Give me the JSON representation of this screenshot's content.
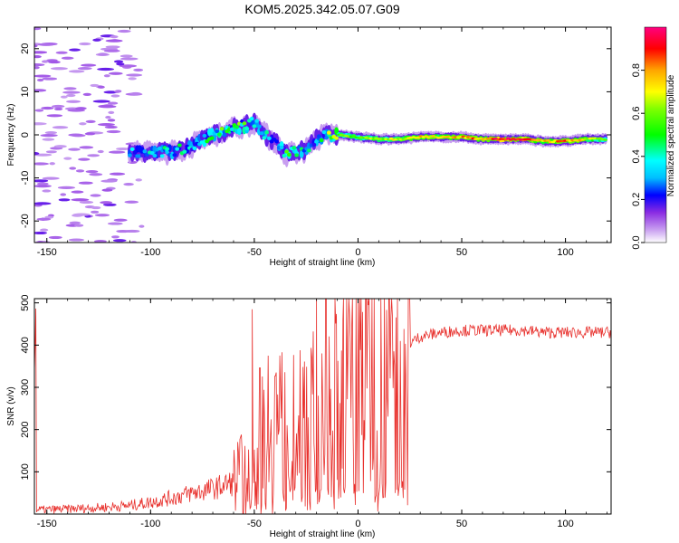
{
  "figure": {
    "title": "KOM5.2025.342.05.07.G09"
  },
  "chart_data": [
    {
      "type": "heatmap",
      "id": "spectrogram",
      "xlabel": "Height of straight line (km)",
      "ylabel": "Frequency (Hz)",
      "xlim": [
        -156,
        122
      ],
      "ylim": [
        -25,
        25
      ],
      "xticks": [
        -150,
        -100,
        -50,
        0,
        50,
        100
      ],
      "xtick_labels": [
        "-150",
        "-100",
        "-50",
        "0",
        "50",
        "100"
      ],
      "yticks": [
        -20,
        -10,
        0,
        10,
        20
      ],
      "ytick_labels": [
        "-20",
        "-10",
        "0",
        "10",
        "20"
      ],
      "colorbar": {
        "label": "Normalized spectral amplitude",
        "range": [
          0,
          1
        ],
        "ticks": [
          0.0,
          0.2,
          0.4,
          0.6,
          0.8
        ],
        "tick_labels": [
          "0.0",
          "0.2",
          "0.4",
          "0.6",
          "0.8"
        ]
      },
      "ridge": {
        "x": [
          -110,
          -100,
          -90,
          -80,
          -70,
          -60,
          -55,
          -50,
          -45,
          -40,
          -35,
          -30,
          -25,
          -20,
          -15,
          -10,
          0,
          10,
          20,
          30,
          40,
          50,
          60,
          70,
          80,
          90,
          100,
          110,
          120
        ],
        "freq": [
          -4,
          -4,
          -4,
          -2.5,
          0,
          1.5,
          2,
          3,
          0,
          -1.5,
          -4.5,
          -4,
          -3.5,
          -1,
          0,
          0,
          -0.5,
          -1,
          -1,
          -0.5,
          -0.5,
          -0.5,
          -1,
          -1,
          -1,
          -1.5,
          -1.5,
          -1,
          -1
        ],
        "amplitude": [
          0.25,
          0.3,
          0.35,
          0.3,
          0.4,
          0.45,
          0.45,
          0.3,
          0.3,
          0.3,
          0.4,
          0.35,
          0.35,
          0.3,
          0.45,
          0.6,
          0.6,
          0.65,
          0.7,
          0.75,
          0.75,
          0.8,
          0.85,
          0.95,
          0.9,
          0.75,
          0.85,
          0.7,
          0.6
        ]
      }
    },
    {
      "type": "line",
      "id": "snr",
      "xlabel": "Height of straight line (km)",
      "ylabel": "SNR (v/v)",
      "xlim": [
        -156,
        122
      ],
      "ylim": [
        0,
        510
      ],
      "xticks": [
        -150,
        -100,
        -50,
        0,
        50,
        100
      ],
      "xtick_labels": [
        "-150",
        "-100",
        "-50",
        "0",
        "50",
        "100"
      ],
      "yticks": [
        100,
        200,
        300,
        400,
        500
      ],
      "ytick_labels": [
        "100",
        "200",
        "300",
        "400",
        "500"
      ],
      "series": [
        {
          "name": "SNR",
          "color": "#e8302c",
          "x": [
            -155,
            -140,
            -125,
            -110,
            -100,
            -90,
            -80,
            -70,
            -60,
            -55,
            -50,
            -45,
            -40,
            -35,
            -30,
            -25,
            -20,
            -15,
            -10,
            -5,
            0,
            5,
            10,
            15,
            20,
            25,
            30,
            40,
            50,
            60,
            70,
            80,
            90,
            100,
            110,
            120
          ],
          "y": [
            10,
            12,
            15,
            20,
            28,
            38,
            50,
            60,
            75,
            90,
            130,
            210,
            240,
            180,
            230,
            260,
            200,
            280,
            320,
            305,
            330,
            345,
            360,
            375,
            385,
            405,
            420,
            430,
            435,
            435,
            435,
            435,
            430,
            430,
            430,
            430
          ]
        }
      ],
      "peaks": [
        {
          "x": -51,
          "y": 485
        },
        {
          "x": -20,
          "y": 510
        },
        {
          "x": -7,
          "y": 510
        },
        {
          "x": 11,
          "y": 510
        }
      ]
    }
  ]
}
